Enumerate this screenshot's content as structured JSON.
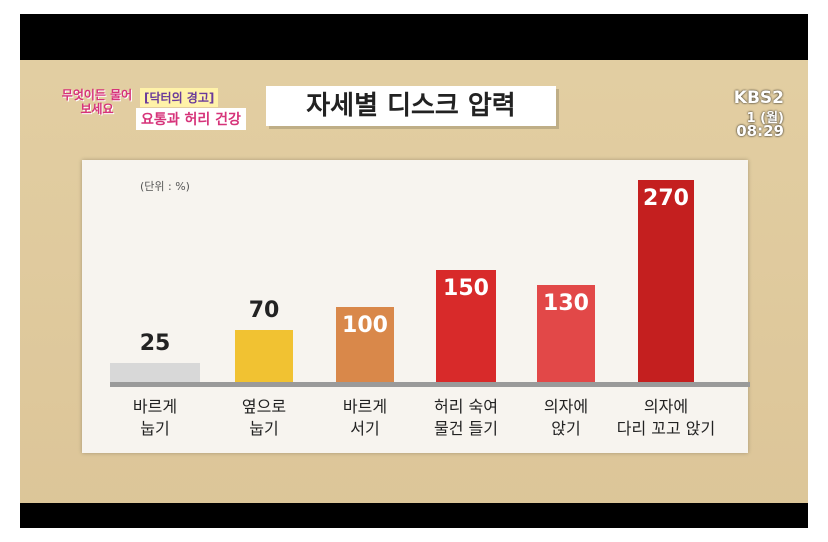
{
  "chart_data": {
    "type": "bar",
    "title": "자세별 디스크 압력",
    "subtitle": "(단위 : %)",
    "categories": [
      "바르게\n눕기",
      "옆으로\n눕기",
      "바르게\n서기",
      "허리 숙여\n물건 들기",
      "의자에\n앉기",
      "의자에\n다리 꼬고 앉기"
    ],
    "series": [
      {
        "values": [
          25,
          70,
          100,
          150,
          130,
          270
        ],
        "colors": [
          "#d8d8d8",
          "#f1c232",
          "#d9884a",
          "#d82a2a",
          "#e24848",
          "#c41f1f"
        ]
      }
    ]
  },
  "overlay": {
    "logo": "무엇이든 물어보세요",
    "tag": "[닥터의 경고]",
    "topic": "요통과 허리 건강",
    "channel": "KBS2",
    "day": "1 (월)",
    "time": "08:29"
  }
}
